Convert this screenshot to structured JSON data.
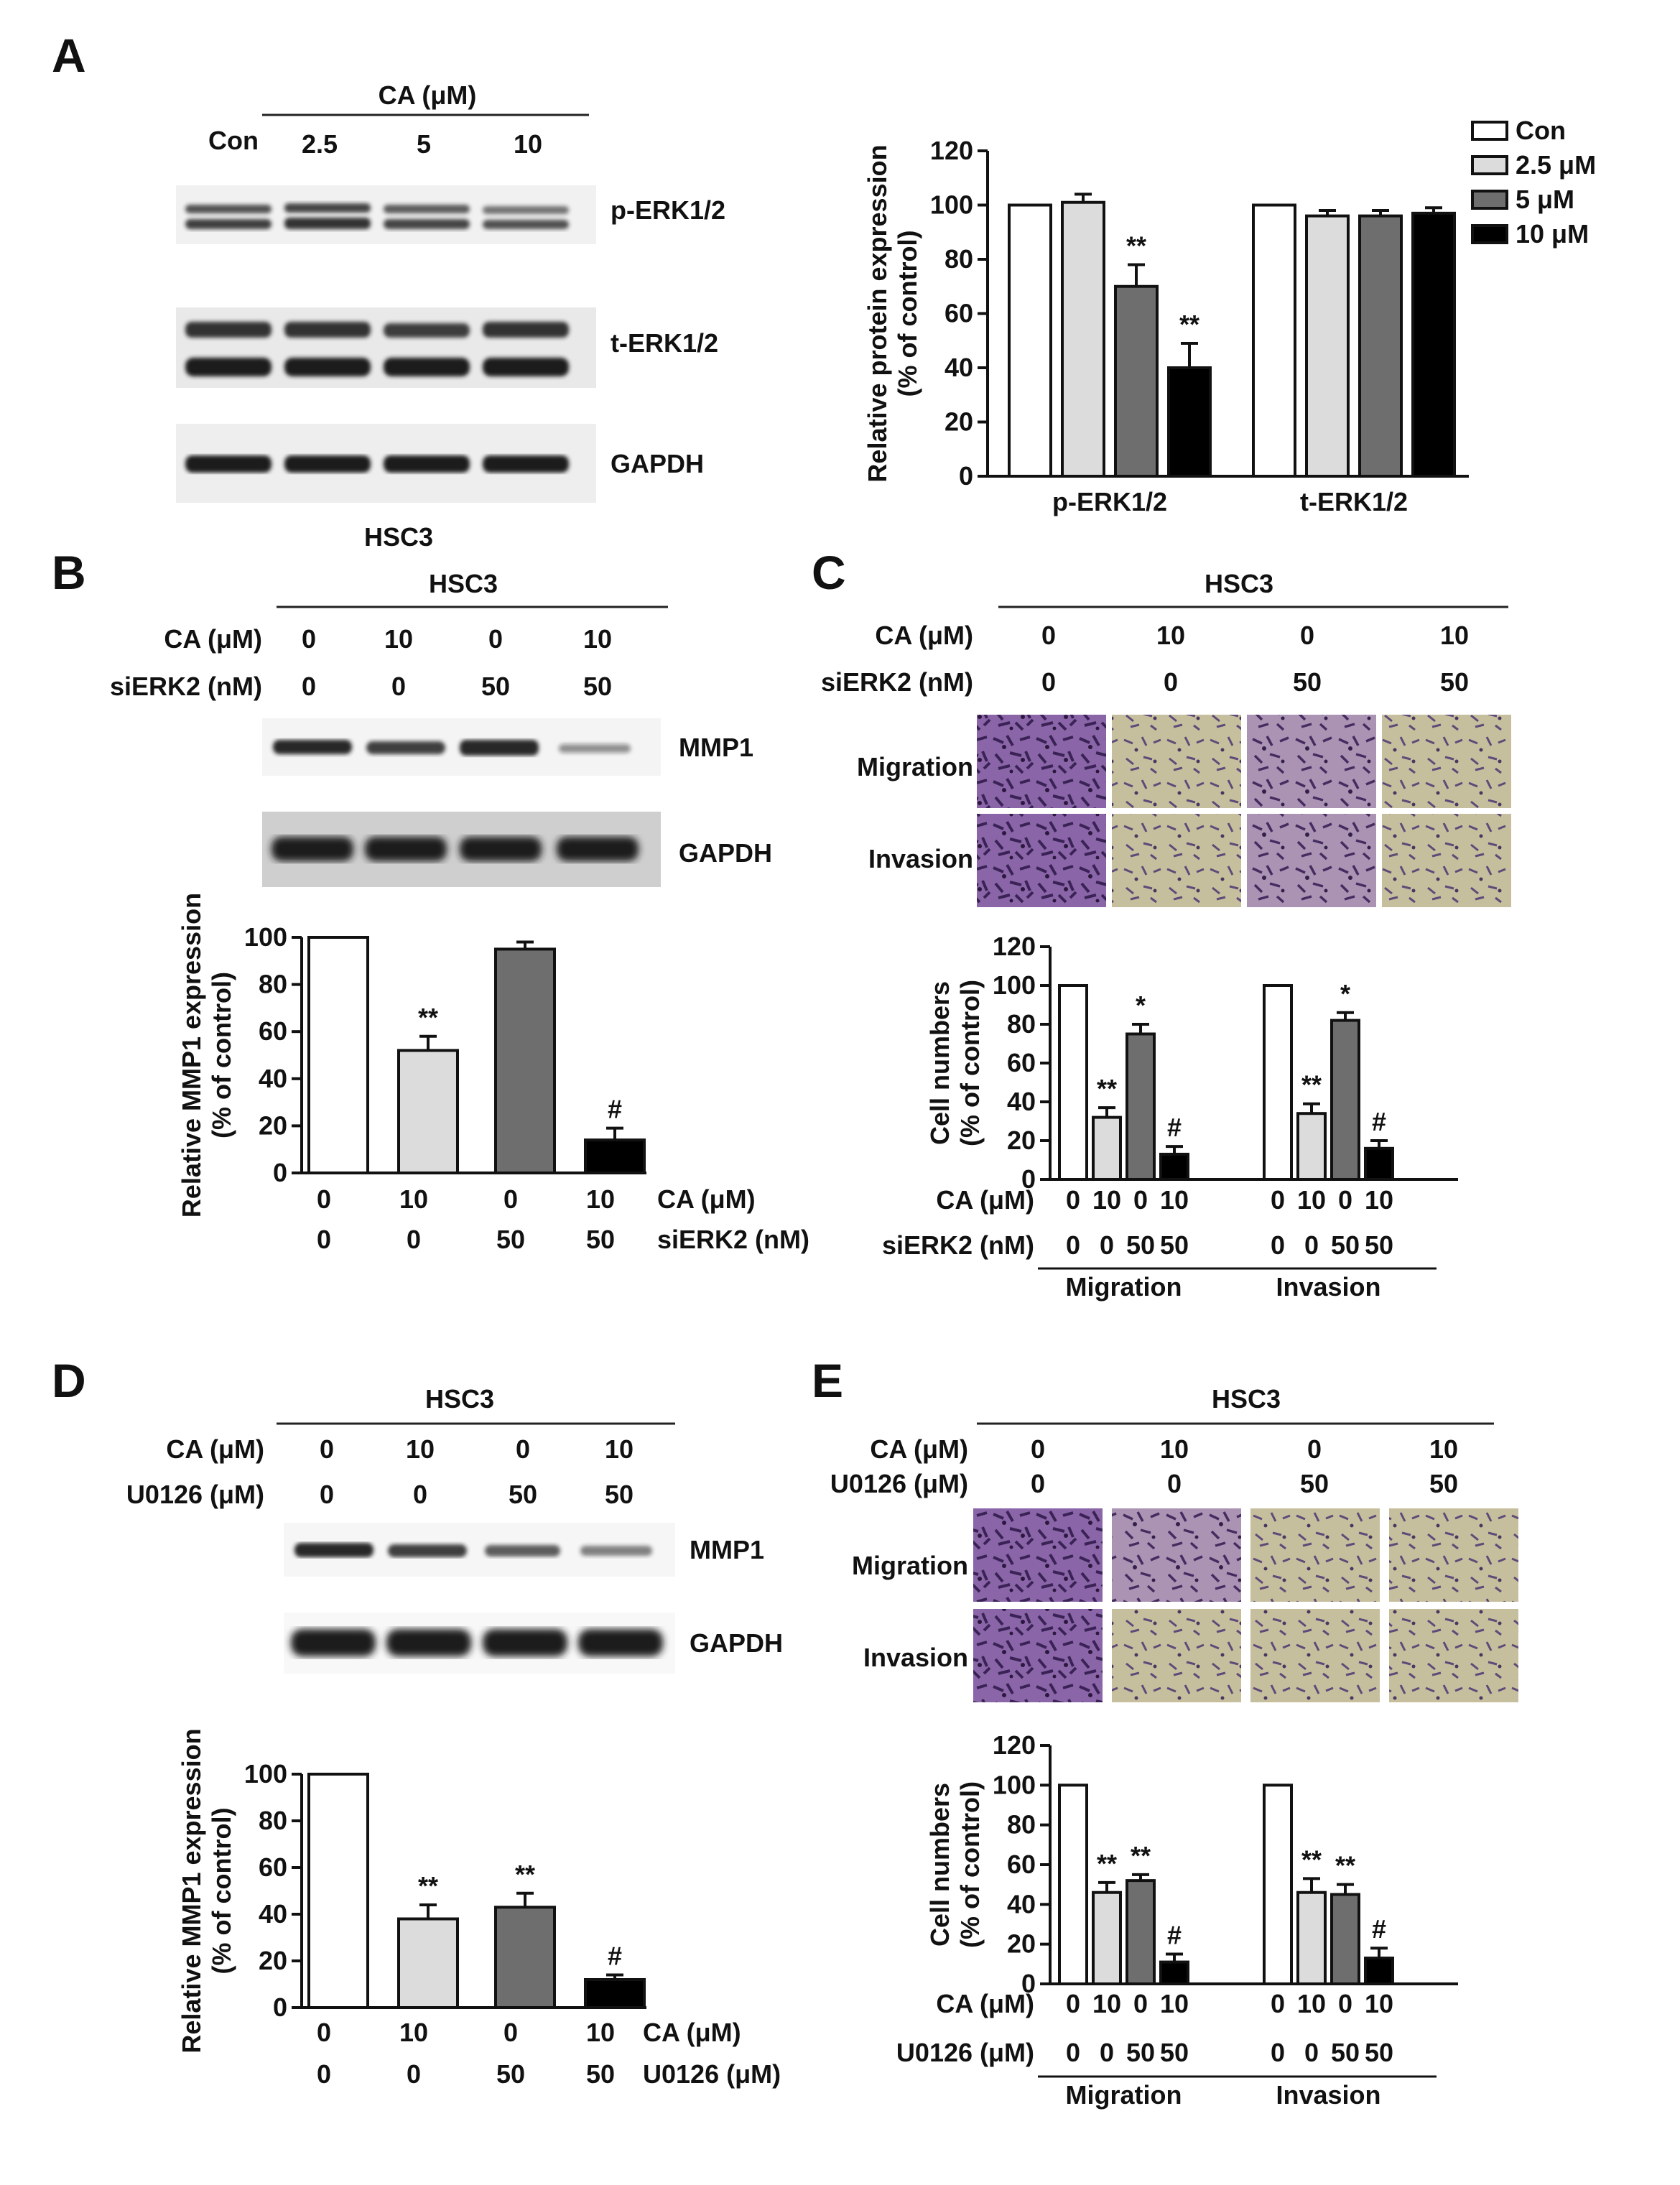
{
  "figure": {
    "panel_A": {
      "letter": "A",
      "blot": {
        "header": "CA (μM)",
        "lanes": [
          "Con",
          "2.5",
          "5",
          "10"
        ],
        "bands": [
          "p-ERK1/2",
          "t-ERK1/2",
          "GAPDH"
        ],
        "cell_line": "HSC3"
      }
    },
    "panel_B": {
      "letter": "B",
      "blot": {
        "cell_line": "HSC3",
        "row_labels": [
          "CA (μM)",
          "siERK2 (nM)"
        ],
        "CA": [
          "0",
          "10",
          "0",
          "10"
        ],
        "siERK2": [
          "0",
          "0",
          "50",
          "50"
        ],
        "bands": [
          "MMP1",
          "GAPDH"
        ]
      }
    },
    "panel_C": {
      "letter": "C",
      "cell_line": "HSC3",
      "row_labels": [
        "CA (μM)",
        "siERK2 (nM)"
      ],
      "CA": [
        "0",
        "10",
        "0",
        "10"
      ],
      "siERK2": [
        "0",
        "0",
        "50",
        "50"
      ],
      "image_rows": [
        "Migration",
        "Invasion"
      ]
    },
    "panel_D": {
      "letter": "D",
      "blot": {
        "cell_line": "HSC3",
        "row_labels": [
          "CA (μM)",
          "U0126 (μM)"
        ],
        "CA": [
          "0",
          "10",
          "0",
          "10"
        ],
        "U0126": [
          "0",
          "0",
          "50",
          "50"
        ],
        "bands": [
          "MMP1",
          "GAPDH"
        ]
      }
    },
    "panel_E": {
      "letter": "E",
      "cell_line": "HSC3",
      "row_labels": [
        "CA (μM)",
        "U0126 (μM)"
      ],
      "CA": [
        "0",
        "10",
        "0",
        "10"
      ],
      "U0126": [
        "0",
        "0",
        "50",
        "50"
      ],
      "image_rows": [
        "Migration",
        "Invasion"
      ]
    }
  },
  "chart_data": [
    {
      "panel": "A",
      "type": "bar",
      "categories": [
        "p-ERK1/2",
        "t-ERK1/2"
      ],
      "series": [
        {
          "name": "Con",
          "values": [
            100,
            100
          ],
          "errors": [
            0,
            0
          ],
          "marks": [
            "",
            ""
          ],
          "color": "#ffffff"
        },
        {
          "name": "2.5 μM",
          "values": [
            101,
            96
          ],
          "errors": [
            3,
            2
          ],
          "marks": [
            "",
            ""
          ],
          "color": "#dcdcdc"
        },
        {
          "name": "5 μM",
          "values": [
            70,
            96
          ],
          "errors": [
            8,
            2
          ],
          "marks": [
            "**",
            ""
          ],
          "color": "#6e6e6e"
        },
        {
          "name": "10 μM",
          "values": [
            40,
            97
          ],
          "errors": [
            9,
            2
          ],
          "marks": [
            "**",
            ""
          ],
          "color": "#000000"
        }
      ],
      "ylabel": "Relative protein expression\n(% of control)",
      "ylim": [
        0,
        120
      ],
      "yticks": [
        0,
        20,
        40,
        60,
        80,
        100,
        120
      ],
      "legend": "top-right"
    },
    {
      "panel": "B",
      "type": "bar",
      "categories": [
        "1",
        "2",
        "3",
        "4"
      ],
      "values": [
        100,
        52,
        95,
        14
      ],
      "errors": [
        0,
        6,
        3,
        5
      ],
      "colors": [
        "#ffffff",
        "#dcdcdc",
        "#6e6e6e",
        "#000000"
      ],
      "marks": [
        "",
        "**",
        "",
        "#"
      ],
      "ylabel": "Relative MMP1 expression\n(% of control)",
      "ylim": [
        0,
        100
      ],
      "yticks": [
        0,
        20,
        40,
        60,
        80,
        100
      ],
      "row_labels": [
        "CA (μM)",
        "siERK2 (nM)"
      ],
      "rows": [
        [
          "0",
          "10",
          "0",
          "10"
        ],
        [
          "0",
          "0",
          "50",
          "50"
        ]
      ]
    },
    {
      "panel": "C",
      "type": "bar",
      "groups": [
        "Migration",
        "Invasion"
      ],
      "values": [
        [
          100,
          32,
          75,
          13
        ],
        [
          100,
          34,
          82,
          16
        ]
      ],
      "errors": [
        [
          0,
          5,
          5,
          4
        ],
        [
          0,
          5,
          4,
          4
        ]
      ],
      "colors": [
        "#ffffff",
        "#dcdcdc",
        "#6e6e6e",
        "#000000"
      ],
      "marks": [
        [
          "",
          "**",
          "*",
          "#"
        ],
        [
          "",
          "**",
          "*",
          "#"
        ]
      ],
      "ylabel": "Cell numbers\n(% of control)",
      "ylim": [
        0,
        120
      ],
      "yticks": [
        0,
        20,
        40,
        60,
        80,
        100,
        120
      ],
      "row_labels": [
        "CA (μM)",
        "siERK2 (nM)"
      ],
      "rows": [
        [
          "0",
          "10",
          "0",
          "10"
        ],
        [
          "0",
          "0",
          "50",
          "50"
        ]
      ]
    },
    {
      "panel": "D",
      "type": "bar",
      "categories": [
        "1",
        "2",
        "3",
        "4"
      ],
      "values": [
        100,
        38,
        43,
        12
      ],
      "errors": [
        0,
        6,
        6,
        2
      ],
      "colors": [
        "#ffffff",
        "#dcdcdc",
        "#6e6e6e",
        "#000000"
      ],
      "marks": [
        "",
        "**",
        "**",
        "#"
      ],
      "ylabel": "Relative MMP1 expression\n(% of control)",
      "ylim": [
        0,
        100
      ],
      "yticks": [
        0,
        20,
        40,
        60,
        80,
        100
      ],
      "row_labels": [
        "CA (μM)",
        "U0126 (μM)"
      ],
      "rows": [
        [
          "0",
          "10",
          "0",
          "10"
        ],
        [
          "0",
          "0",
          "50",
          "50"
        ]
      ]
    },
    {
      "panel": "E",
      "type": "bar",
      "groups": [
        "Migration",
        "Invasion"
      ],
      "values": [
        [
          100,
          46,
          52,
          11
        ],
        [
          100,
          46,
          45,
          13
        ]
      ],
      "errors": [
        [
          0,
          5,
          3,
          4
        ],
        [
          0,
          7,
          5,
          5
        ]
      ],
      "colors": [
        "#ffffff",
        "#dcdcdc",
        "#6e6e6e",
        "#000000"
      ],
      "marks": [
        [
          "",
          "**",
          "**",
          "#"
        ],
        [
          "",
          "**",
          "**",
          "#"
        ]
      ],
      "ylabel": "Cell numbers\n(% of control)",
      "ylim": [
        0,
        120
      ],
      "yticks": [
        0,
        20,
        40,
        60,
        80,
        100,
        120
      ],
      "row_labels": [
        "CA (μM)",
        "U0126 (μM)"
      ],
      "rows": [
        [
          "0",
          "10",
          "0",
          "10"
        ],
        [
          "0",
          "0",
          "50",
          "50"
        ]
      ]
    }
  ]
}
